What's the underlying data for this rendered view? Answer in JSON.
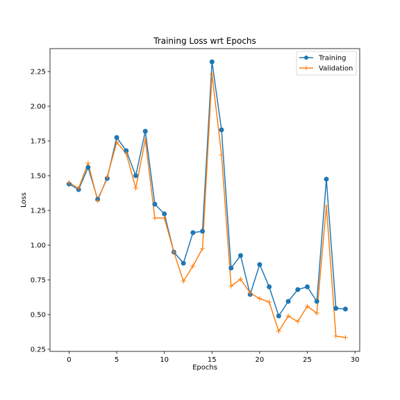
{
  "chart_data": {
    "type": "line",
    "title": "Training Loss wrt Epochs",
    "xlabel": "Epochs",
    "ylabel": "Loss",
    "xlim": [
      -2.0,
      30.5
    ],
    "ylim": [
      0.235,
      2.415
    ],
    "xticks": [
      0,
      5,
      10,
      15,
      20,
      25,
      30
    ],
    "xtick_labels": [
      "0",
      "5",
      "10",
      "15",
      "20",
      "25",
      "30"
    ],
    "yticks": [
      0.25,
      0.5,
      0.75,
      1.0,
      1.25,
      1.5,
      1.75,
      2.0,
      2.25
    ],
    "ytick_labels": [
      "0.25",
      "0.50",
      "0.75",
      "1.00",
      "1.25",
      "1.50",
      "1.75",
      "2.00",
      "2.25"
    ],
    "grid": false,
    "legend_position": "top-right",
    "x": [
      0,
      1,
      2,
      3,
      4,
      5,
      6,
      7,
      8,
      9,
      10,
      11,
      12,
      13,
      14,
      15,
      16,
      17,
      18,
      19,
      20,
      21,
      22,
      23,
      24,
      25,
      26,
      27,
      28,
      29
    ],
    "series": [
      {
        "name": "Training",
        "color": "#1f77b4",
        "marker": "circle",
        "values": [
          1.44,
          1.4,
          1.56,
          1.33,
          1.48,
          1.775,
          1.68,
          1.5,
          1.82,
          1.295,
          1.225,
          0.95,
          0.87,
          1.09,
          1.1,
          2.32,
          1.83,
          0.835,
          0.925,
          0.645,
          0.86,
          0.7,
          0.49,
          0.595,
          0.68,
          0.7,
          0.595,
          1.475,
          0.545,
          0.54
        ]
      },
      {
        "name": "Validation",
        "color": "#ff7f0e",
        "marker": "plus",
        "values": [
          1.45,
          1.41,
          1.59,
          1.32,
          1.49,
          1.74,
          1.66,
          1.41,
          1.76,
          1.195,
          1.195,
          0.95,
          0.74,
          0.85,
          0.975,
          2.23,
          1.65,
          0.705,
          0.755,
          0.655,
          0.615,
          0.59,
          0.38,
          0.49,
          0.45,
          0.56,
          0.51,
          1.28,
          0.345,
          0.335
        ]
      }
    ]
  }
}
